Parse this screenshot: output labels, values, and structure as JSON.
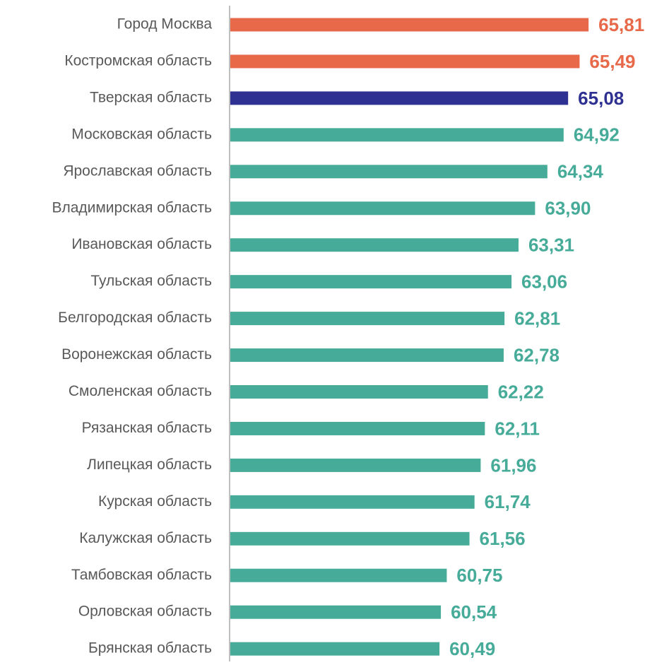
{
  "chart_data": {
    "type": "bar",
    "orientation": "horizontal",
    "categories": [
      "Город Москва",
      "Костромская область",
      "Тверская область",
      "Московская область",
      "Ярославская область",
      "Владимирская область",
      "Ивановская область",
      "Тульская область",
      "Белгородская область",
      "Воронежская область",
      "Смоленская область",
      "Рязанская область",
      "Липецкая область",
      "Курская область",
      "Калужская область",
      "Тамбовская область",
      "Орловская область",
      "Брянская область"
    ],
    "values": [
      65.81,
      65.49,
      65.08,
      64.92,
      64.34,
      63.9,
      63.31,
      63.06,
      62.81,
      62.78,
      62.22,
      62.11,
      61.96,
      61.74,
      61.56,
      60.75,
      60.54,
      60.49
    ],
    "value_labels": [
      "65,81",
      "65,49",
      "65,08",
      "64,92",
      "64,34",
      "63,90",
      "63,31",
      "63,06",
      "62,81",
      "62,78",
      "62,22",
      "62,11",
      "61,96",
      "61,74",
      "61,56",
      "60,75",
      "60,54",
      "60,49"
    ],
    "colors": [
      "#e8694a",
      "#e8694a",
      "#2e3192",
      "#46ab98",
      "#46ab98",
      "#46ab98",
      "#46ab98",
      "#46ab98",
      "#46ab98",
      "#46ab98",
      "#46ab98",
      "#46ab98",
      "#46ab98",
      "#46ab98",
      "#46ab98",
      "#46ab98",
      "#46ab98",
      "#46ab98"
    ],
    "xlim": [
      53,
      68
    ]
  }
}
